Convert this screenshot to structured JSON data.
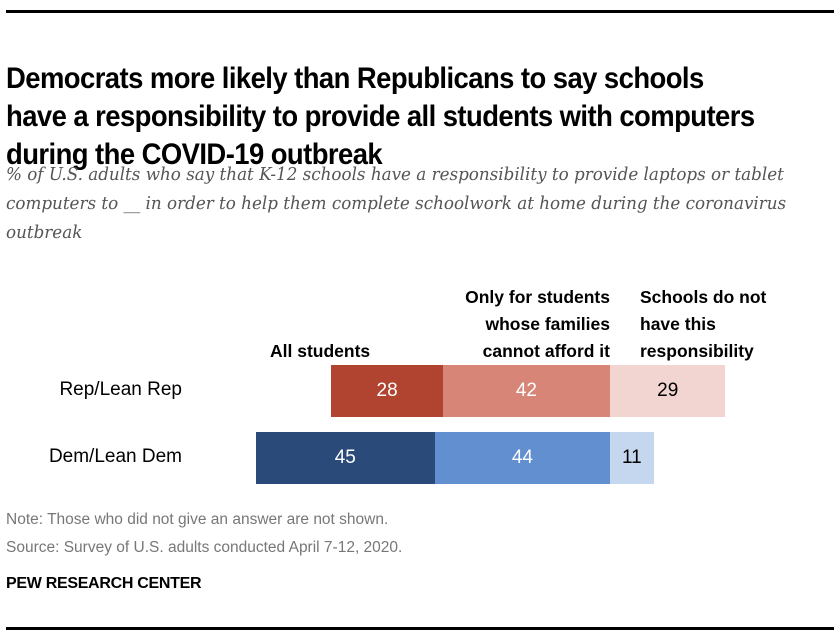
{
  "header": {
    "title": "Democrats more likely than Republicans to say schools have a responsibility to provide all students with computers during the COVID-19 outbreak",
    "subtitle": "% of U.S. adults who say that K-12 schools have a responsibility to provide laptops or tablet computers to __ in order to help them complete schoolwork at home during the coronavirus outbreak"
  },
  "chart_data": {
    "type": "bar",
    "orientation": "horizontal-stacked-diverging",
    "title": "Democrats more likely than Republicans to say schools have a responsibility to provide all students with computers during the COVID-19 outbreak",
    "subtitle": "% of U.S. adults who say that K-12 schools have a responsibility to provide laptops or tablet computers to __ in order to help them complete schoolwork at home during the coronavirus outbreak",
    "categories": [
      "Rep/Lean Rep",
      "Dem/Lean Dem"
    ],
    "series": [
      {
        "name": "All students",
        "values": [
          28,
          45
        ],
        "colors": [
          "#b14331",
          "#2a4a79"
        ],
        "label_colors": [
          "#ffffff",
          "#ffffff"
        ]
      },
      {
        "name": "Only for students whose families cannot afford it",
        "values": [
          42,
          44
        ],
        "colors": [
          "#d68577",
          "#628fd0"
        ],
        "label_colors": [
          "#ffffff",
          "#ffffff"
        ]
      },
      {
        "name": "Schools do not have this responsibility",
        "values": [
          29,
          11
        ],
        "colors": [
          "#f2d5d1",
          "#c5d7ee"
        ],
        "label_colors": [
          "#000000",
          "#000000"
        ]
      }
    ],
    "legend": {
      "placement": "top",
      "labels": [
        "All students",
        "Only for students whose families cannot afford it",
        "Schools do not have this responsibility"
      ]
    },
    "xlabel": "",
    "ylabel": "",
    "grid": false
  },
  "legend_lines": {
    "all": [
      "All students"
    ],
    "only": [
      "Only for students",
      "whose families",
      "cannot afford it"
    ],
    "none": [
      "Schools do not",
      "have this",
      "responsibility"
    ]
  },
  "footer": {
    "note": "Note: Those who did not give an answer are not shown.",
    "source": "Source: Survey of U.S. adults conducted April 7-12, 2020.",
    "brand": "PEW RESEARCH CENTER"
  }
}
